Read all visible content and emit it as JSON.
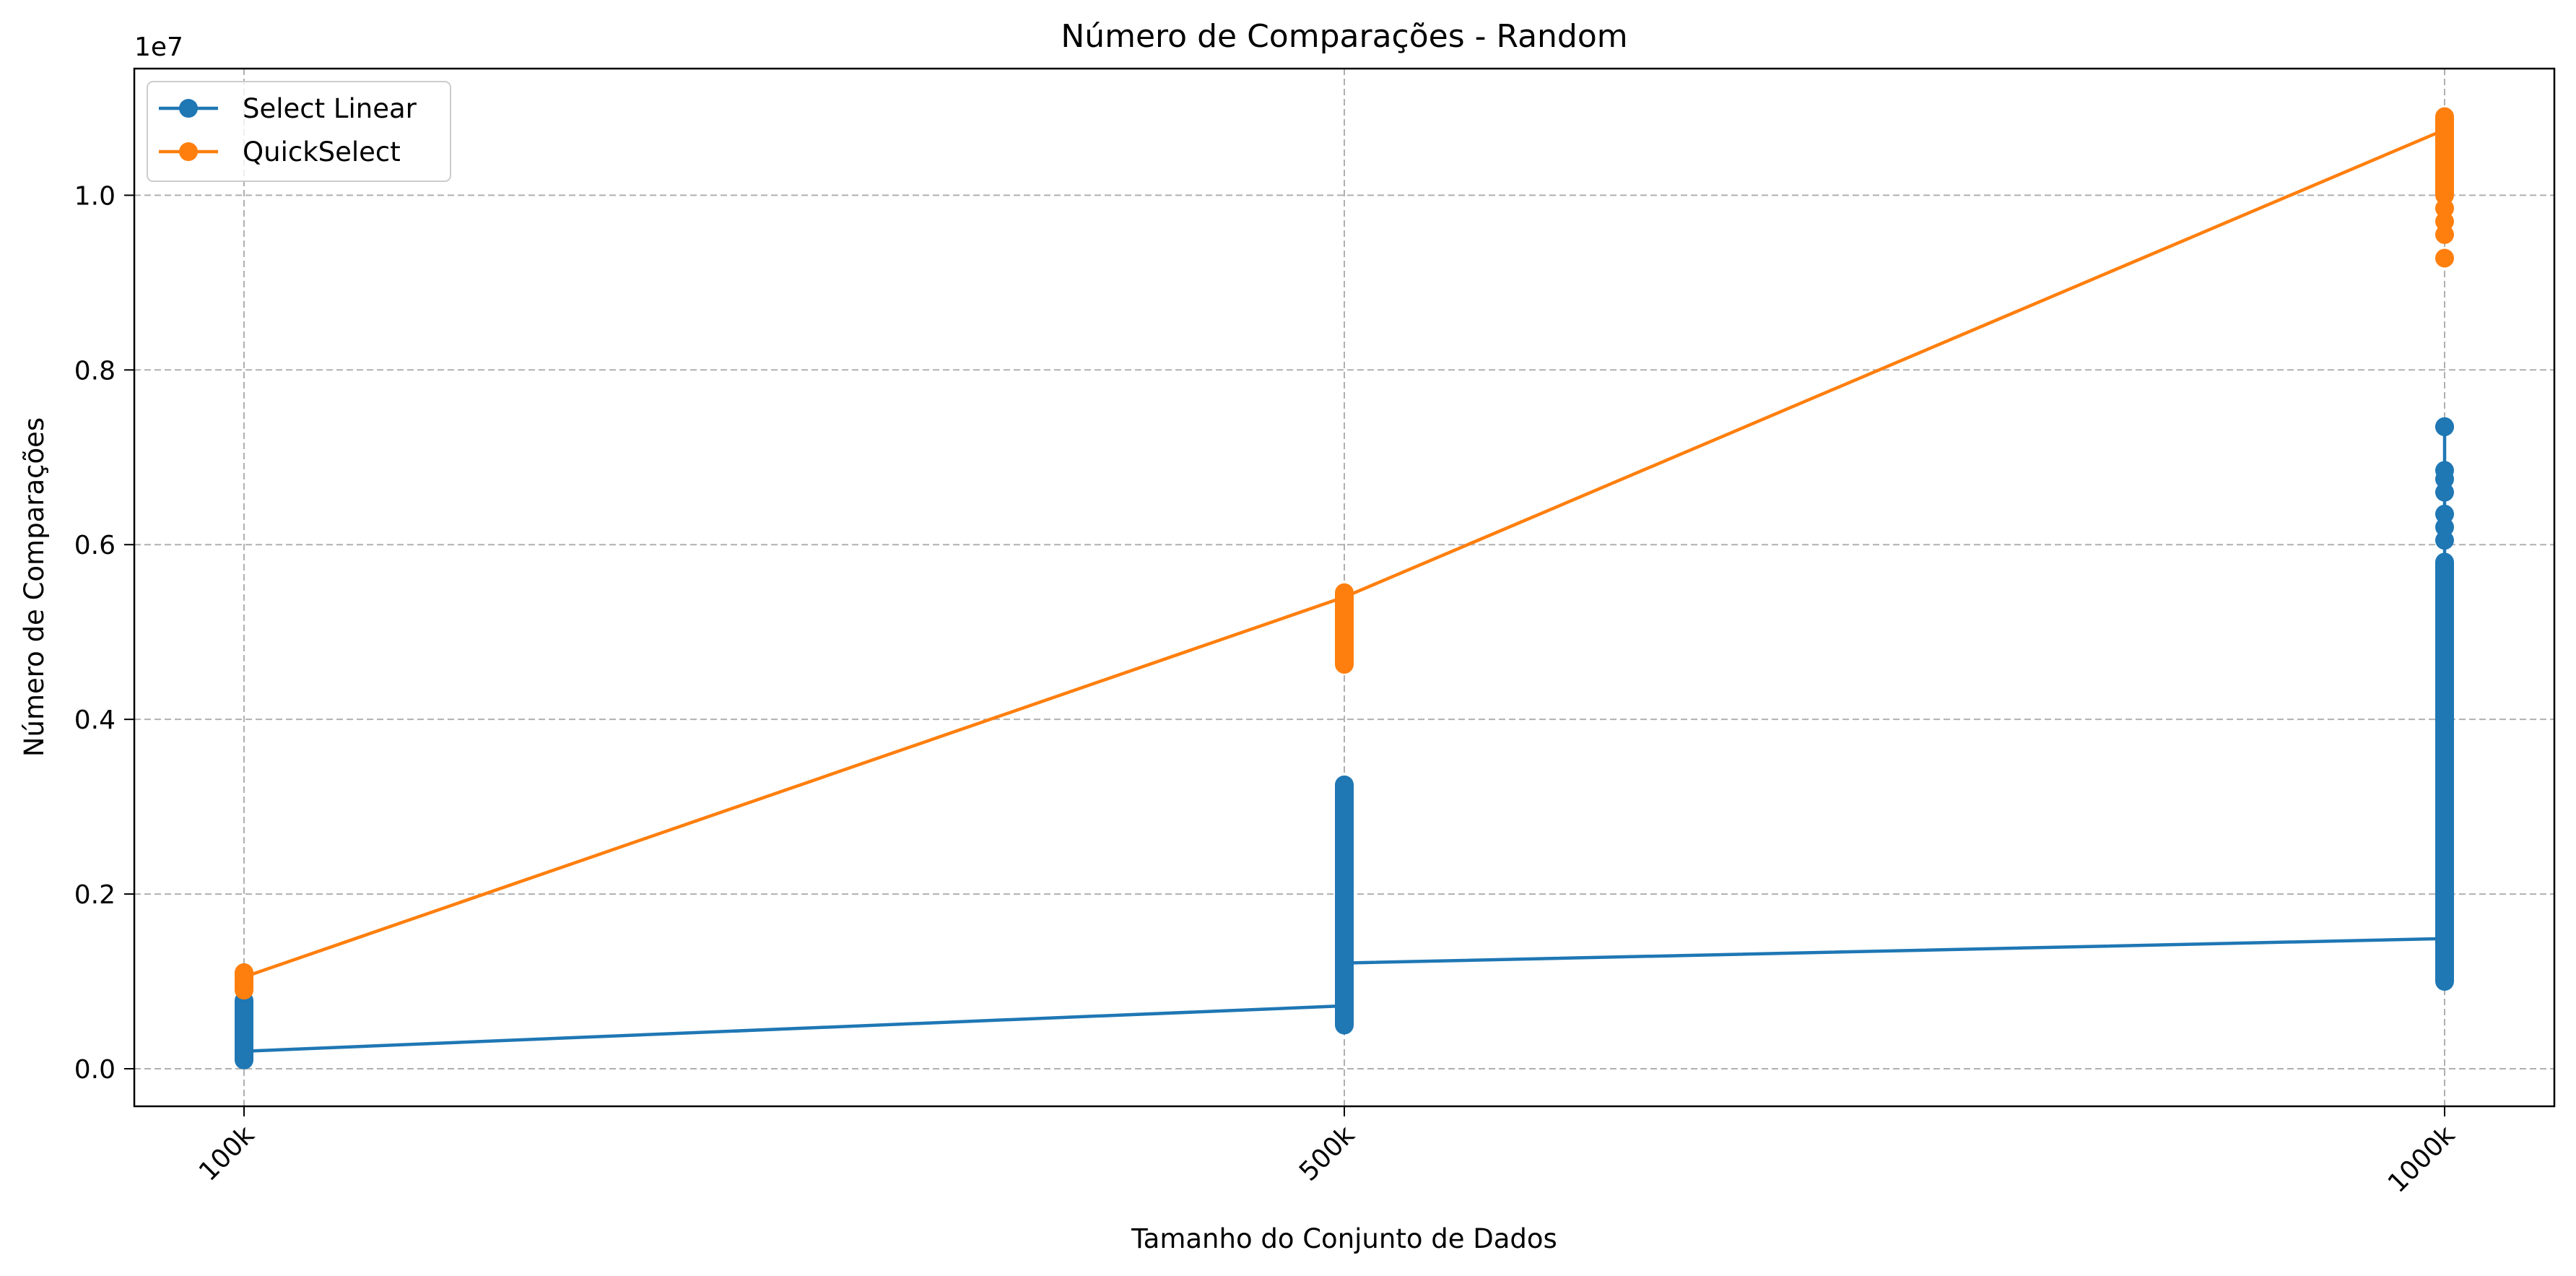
{
  "chart_data": {
    "type": "line",
    "title": "Número de Comparações - Random",
    "xlabel": "Tamanho do Conjunto de Dados",
    "ylabel": "Número de Comparações",
    "y_multiplier_label": "1e7",
    "categories": [
      "100k",
      "500k",
      "1000k"
    ],
    "y_unit_scale": 10000000,
    "ylim": [
      -0.043,
      1.145
    ],
    "yticks": [
      0.0,
      0.2,
      0.4,
      0.6,
      0.8,
      1.0
    ],
    "ytick_labels": [
      "0.0",
      "0.2",
      "0.4",
      "0.6",
      "0.8",
      "1.0"
    ],
    "grid": true,
    "legend_position": "top-left",
    "series": [
      {
        "name": "Select Linear",
        "color": "#1f77b4",
        "path": [
          {
            "cat": 0,
            "y": 0.02
          },
          {
            "cat": 1,
            "y": 0.072
          },
          {
            "cat": 1,
            "y": 0.121
          },
          {
            "cat": 2,
            "y": 0.149
          },
          {
            "cat": 2,
            "y": 0.735
          }
        ],
        "spread": [
          {
            "cat": 0,
            "min": 0.01,
            "max": 0.078
          },
          {
            "cat": 1,
            "min": 0.05,
            "max": 0.325
          },
          {
            "cat": 2,
            "min": 0.1,
            "max": 0.58
          }
        ],
        "outliers": [
          {
            "cat": 2,
            "y": 0.735
          },
          {
            "cat": 2,
            "y": 0.685
          },
          {
            "cat": 2,
            "y": 0.675
          },
          {
            "cat": 2,
            "y": 0.66
          },
          {
            "cat": 2,
            "y": 0.635
          },
          {
            "cat": 2,
            "y": 0.62
          },
          {
            "cat": 2,
            "y": 0.605
          }
        ]
      },
      {
        "name": "QuickSelect",
        "color": "#ff7f0e",
        "path": [
          {
            "cat": 0,
            "y": 0.105
          },
          {
            "cat": 1,
            "y": 0.54
          },
          {
            "cat": 2,
            "y": 1.075
          }
        ],
        "spread": [
          {
            "cat": 0,
            "min": 0.09,
            "max": 0.11
          },
          {
            "cat": 1,
            "min": 0.463,
            "max": 0.545
          },
          {
            "cat": 2,
            "min": 1.0,
            "max": 1.09
          }
        ],
        "outliers": [
          {
            "cat": 2,
            "y": 0.928
          },
          {
            "cat": 2,
            "y": 0.955
          },
          {
            "cat": 2,
            "y": 0.97
          },
          {
            "cat": 2,
            "y": 0.985
          }
        ]
      }
    ]
  }
}
